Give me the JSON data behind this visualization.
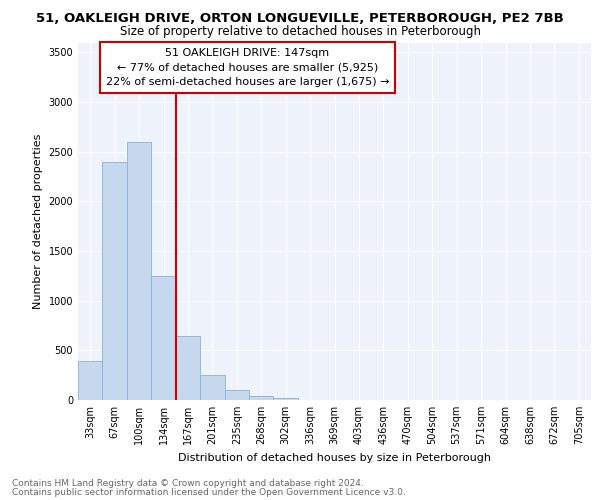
{
  "title_line1": "51, OAKLEIGH DRIVE, ORTON LONGUEVILLE, PETERBOROUGH, PE2 7BB",
  "title_line2": "Size of property relative to detached houses in Peterborough",
  "xlabel": "Distribution of detached houses by size in Peterborough",
  "ylabel": "Number of detached properties",
  "categories": [
    "33sqm",
    "67sqm",
    "100sqm",
    "134sqm",
    "167sqm",
    "201sqm",
    "235sqm",
    "268sqm",
    "302sqm",
    "336sqm",
    "369sqm",
    "403sqm",
    "436sqm",
    "470sqm",
    "504sqm",
    "537sqm",
    "571sqm",
    "604sqm",
    "638sqm",
    "672sqm",
    "705sqm"
  ],
  "values": [
    390,
    2400,
    2600,
    1250,
    640,
    250,
    100,
    45,
    20,
    5,
    2,
    1,
    0,
    0,
    0,
    0,
    0,
    0,
    0,
    0,
    0
  ],
  "bar_color": "#c5d8ed",
  "bar_edge_color": "#8ab4d4",
  "vline_x_index": 3,
  "vline_color": "#cc0000",
  "annotation_text": "51 OAKLEIGH DRIVE: 147sqm\n← 77% of detached houses are smaller (5,925)\n22% of semi-detached houses are larger (1,675) →",
  "annotation_box_color": "#cc0000",
  "ylim": [
    0,
    3600
  ],
  "yticks": [
    0,
    500,
    1000,
    1500,
    2000,
    2500,
    3000,
    3500
  ],
  "footnote_line1": "Contains HM Land Registry data © Crown copyright and database right 2024.",
  "footnote_line2": "Contains public sector information licensed under the Open Government Licence v3.0.",
  "background_color": "#ffffff",
  "plot_bg_color": "#eef2fb",
  "grid_color": "#ffffff",
  "title_fontsize": 9.5,
  "subtitle_fontsize": 8.5,
  "axis_label_fontsize": 8,
  "tick_fontsize": 7,
  "annot_fontsize": 8,
  "footnote_fontsize": 6.5
}
